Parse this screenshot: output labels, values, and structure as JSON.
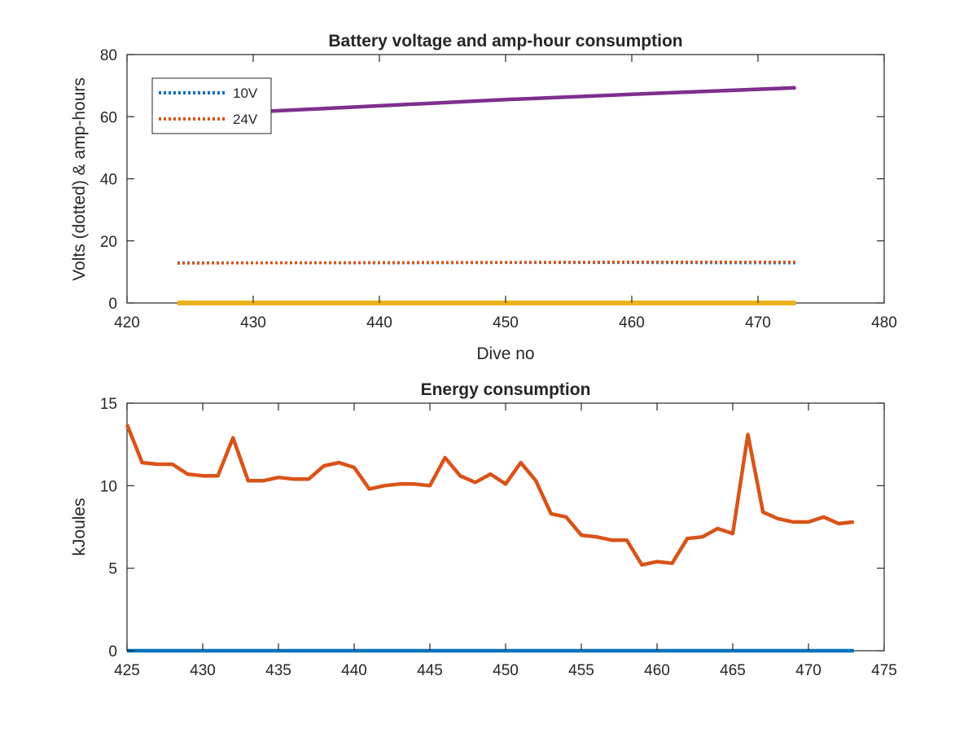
{
  "chart_data": [
    {
      "type": "line",
      "title": "Battery voltage and amp-hour consumption",
      "xlabel": "Dive no",
      "ylabel": "Volts (dotted) & amp-hours",
      "xlim": [
        420,
        480
      ],
      "ylim": [
        0,
        80
      ],
      "xticks": [
        "420",
        "430",
        "440",
        "450",
        "460",
        "470",
        "480"
      ],
      "yticks": [
        "0",
        "20",
        "40",
        "60",
        "80"
      ],
      "grid": false,
      "legend": {
        "placement": "top-left",
        "entries": [
          {
            "label": "10V",
            "color": "#0072BD",
            "style": "dotted"
          },
          {
            "label": "24V",
            "color": "#D95319",
            "style": "dotted"
          }
        ]
      },
      "series": [
        {
          "name": "10V",
          "style": "dotted",
          "color": "#0072BD",
          "x": [
            424,
            430,
            440,
            450,
            460,
            473
          ],
          "y": [
            12.9,
            12.9,
            12.9,
            13.0,
            13.0,
            12.9
          ]
        },
        {
          "name": "24V",
          "style": "dotted",
          "color": "#D95319",
          "x": [
            424,
            430,
            440,
            450,
            460,
            473
          ],
          "y": [
            12.8,
            12.9,
            13.0,
            13.1,
            13.2,
            13.2
          ]
        },
        {
          "style": "solid",
          "color": "#7E2F8E",
          "x": [
            424,
            430,
            440,
            450,
            460,
            473
          ],
          "y": [
            60.0,
            61.5,
            63.5,
            65.5,
            67.2,
            69.3
          ]
        },
        {
          "style": "solid",
          "color": "#EDB120",
          "x": [
            424,
            473
          ],
          "y": [
            0,
            0
          ]
        }
      ]
    },
    {
      "type": "line",
      "title": "Energy consumption",
      "xlabel": "",
      "ylabel": "kJoules",
      "xlim": [
        425,
        475
      ],
      "ylim": [
        0,
        15
      ],
      "xticks": [
        "425",
        "430",
        "435",
        "440",
        "445",
        "450",
        "455",
        "460",
        "465",
        "470",
        "475"
      ],
      "yticks": [
        "0",
        "5",
        "10",
        "15"
      ],
      "grid": false,
      "series": [
        {
          "style": "solid",
          "color": "#D95319",
          "x": [
            425,
            426,
            427,
            428,
            429,
            430,
            431,
            432,
            433,
            434,
            435,
            436,
            437,
            438,
            439,
            440,
            441,
            442,
            443,
            444,
            445,
            446,
            447,
            448,
            449,
            450,
            451,
            452,
            453,
            454,
            455,
            456,
            457,
            458,
            459,
            460,
            461,
            462,
            463,
            464,
            465,
            466,
            467,
            468,
            469,
            470,
            471,
            472,
            473
          ],
          "y": [
            13.7,
            11.4,
            11.3,
            11.3,
            10.7,
            10.6,
            10.6,
            12.9,
            10.3,
            10.3,
            10.5,
            10.4,
            10.4,
            11.2,
            11.4,
            11.1,
            9.8,
            10.0,
            10.1,
            10.1,
            10.0,
            11.7,
            10.6,
            10.2,
            10.7,
            10.1,
            11.4,
            10.3,
            8.3,
            8.1,
            7.0,
            6.9,
            6.7,
            6.7,
            5.2,
            5.4,
            5.3,
            6.8,
            6.9,
            7.4,
            7.1,
            13.1,
            8.4,
            8.0,
            7.8,
            7.8,
            8.1,
            7.7,
            7.8
          ]
        },
        {
          "style": "solid",
          "color": "#0072BD",
          "x": [
            425,
            473
          ],
          "y": [
            0,
            0
          ]
        }
      ]
    }
  ]
}
